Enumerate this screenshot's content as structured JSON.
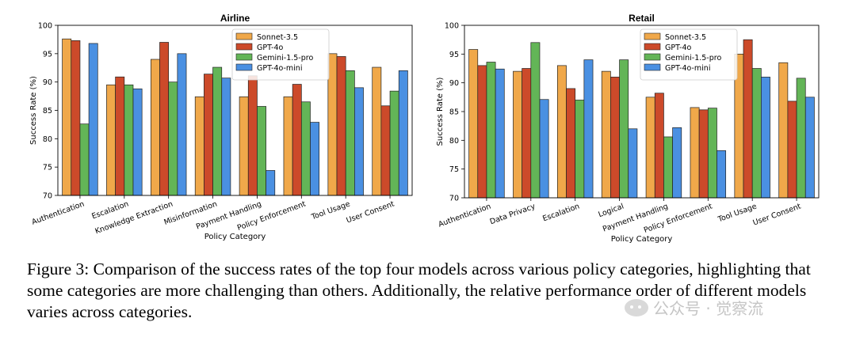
{
  "chart_data": [
    {
      "type": "bar",
      "title": "Airline",
      "xlabel": "Policy Category",
      "ylabel": "Success Rate (%)",
      "ylim": [
        70,
        100
      ],
      "yticks": [
        70,
        75,
        80,
        85,
        90,
        95,
        100
      ],
      "legend_position": "top-center",
      "grid": false,
      "categories": [
        "Authentication",
        "Escalation",
        "Knowledge Extraction",
        "Misinformation",
        "Payment Handling",
        "Policy Enforcement",
        "Tool Usage",
        "User Consent"
      ],
      "series": [
        {
          "name": "Sonnet-3.5",
          "color": "#F0A84A",
          "values": [
            97.6,
            89.5,
            94.0,
            87.4,
            87.4,
            87.4,
            95.0,
            92.6
          ]
        },
        {
          "name": "GPT-4o",
          "color": "#CC4A2A",
          "values": [
            97.3,
            90.9,
            97.0,
            91.4,
            91.1,
            89.6,
            94.5,
            85.8
          ]
        },
        {
          "name": "Gemini-1.5-pro",
          "color": "#63B557",
          "values": [
            82.6,
            89.5,
            90.0,
            92.6,
            85.7,
            86.5,
            92.0,
            88.4
          ]
        },
        {
          "name": "GPT-4o-mini",
          "color": "#4A90E2",
          "values": [
            96.8,
            88.8,
            95.0,
            90.7,
            74.4,
            82.9,
            89.0,
            92.0
          ]
        }
      ]
    },
    {
      "type": "bar",
      "title": "Retail",
      "xlabel": "Policy Category",
      "ylabel": "Success Rate (%)",
      "ylim": [
        70,
        100
      ],
      "yticks": [
        70,
        75,
        80,
        85,
        90,
        95,
        100
      ],
      "legend_position": "top-center",
      "grid": false,
      "categories": [
        "Authentication",
        "Data Privacy",
        "Escalation",
        "Logical",
        "Payment Handling",
        "Policy Enforcement",
        "Tool Usage",
        "User Consent"
      ],
      "series": [
        {
          "name": "Sonnet-3.5",
          "color": "#F0A84A",
          "values": [
            95.8,
            92.0,
            93.0,
            92.0,
            87.5,
            85.7,
            95.0,
            93.5
          ]
        },
        {
          "name": "GPT-4o",
          "color": "#CC4A2A",
          "values": [
            93.0,
            92.5,
            89.0,
            91.0,
            88.2,
            85.3,
            97.5,
            86.8
          ]
        },
        {
          "name": "Gemini-1.5-pro",
          "color": "#63B557",
          "values": [
            93.6,
            97.0,
            87.0,
            94.0,
            80.6,
            85.6,
            92.5,
            90.8
          ]
        },
        {
          "name": "GPT-4o-mini",
          "color": "#4A90E2",
          "values": [
            92.4,
            87.1,
            94.0,
            82.0,
            82.2,
            78.2,
            91.0,
            87.5
          ]
        }
      ]
    }
  ],
  "caption": "Figure 3: Comparison of the success rates of the top four models across various policy categories, highlighting that some categories are more challenging than others.  Additionally, the relative performance order of different models varies across categories.",
  "watermark": "公众号 · 觉察流"
}
